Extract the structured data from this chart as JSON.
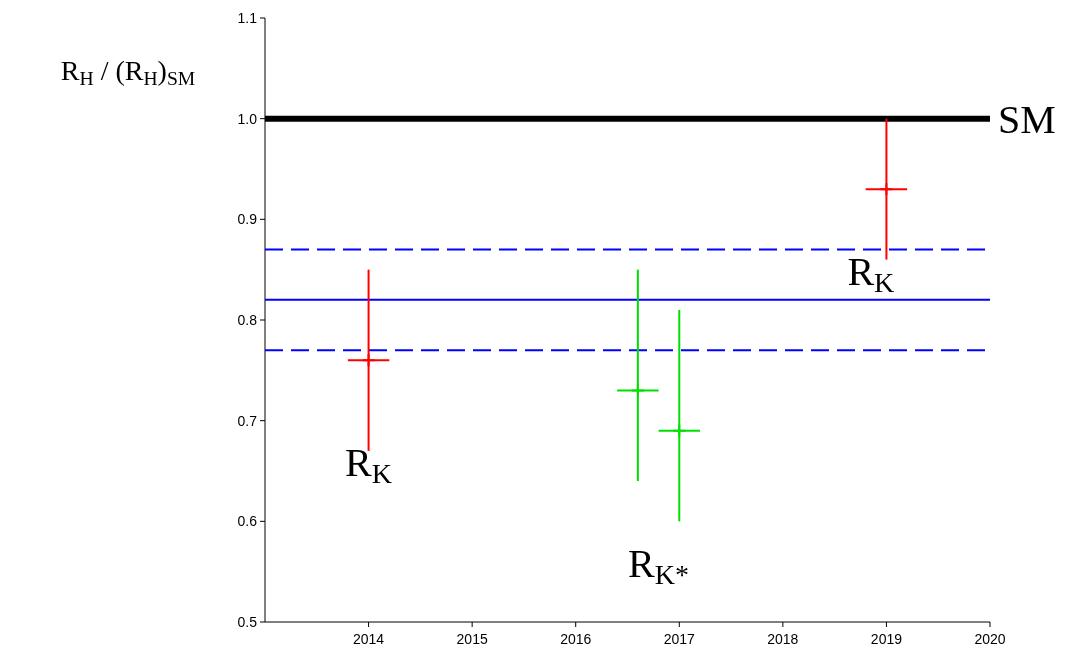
{
  "chart_data": {
    "type": "scatter",
    "ylabel": "R$_{H}$ / (R$_{H}$)$_{SM}$",
    "xlim": [
      2013,
      2020
    ],
    "xticks": [
      2014,
      2015,
      2016,
      2017,
      2018,
      2019,
      2020
    ],
    "ylim": [
      0.5,
      1.1
    ],
    "yticks": [
      0.5,
      0.6,
      0.7,
      0.8,
      0.9,
      {
        "value": 1,
        "label": "1.0"
      },
      1.1
    ],
    "marker": "cross",
    "series": [
      {
        "color": "#ff0000",
        "x": [
          2014,
          2019
        ],
        "values": [
          0.76,
          0.93
        ],
        "errors": [
          [
            0.67,
            0.85
          ],
          [
            0.86,
            1.0
          ]
        ],
        "xerrors": [
          0.2,
          0.2
        ]
      },
      {
        "color": "#00e000",
        "x": [
          2016.6,
          2017
        ],
        "values": [
          0.73,
          0.69
        ],
        "errors": [
          [
            0.64,
            0.85
          ],
          [
            0.6,
            0.81
          ]
        ],
        "xerrors": [
          0.2,
          0.2
        ]
      }
    ],
    "ref_lines": [
      {
        "axis": "y",
        "value": 1.0,
        "label": "SM",
        "color": "#000000",
        "line_style": "solid"
      },
      {
        "axis": "y",
        "value": 0.82,
        "label": null,
        "color": "#0000ff",
        "line_style": "solid"
      },
      {
        "axis": "y",
        "value": 0.87,
        "label": null,
        "color": "#0000ff",
        "line_style": "dashed"
      },
      {
        "axis": "y",
        "value": 0.77,
        "label": null,
        "color": "#0000ff",
        "line_style": "dashed"
      }
    ],
    "annotations": [
      "R$_{K}$",
      "R$_{K*}$",
      "R$_{K}$"
    ]
  }
}
